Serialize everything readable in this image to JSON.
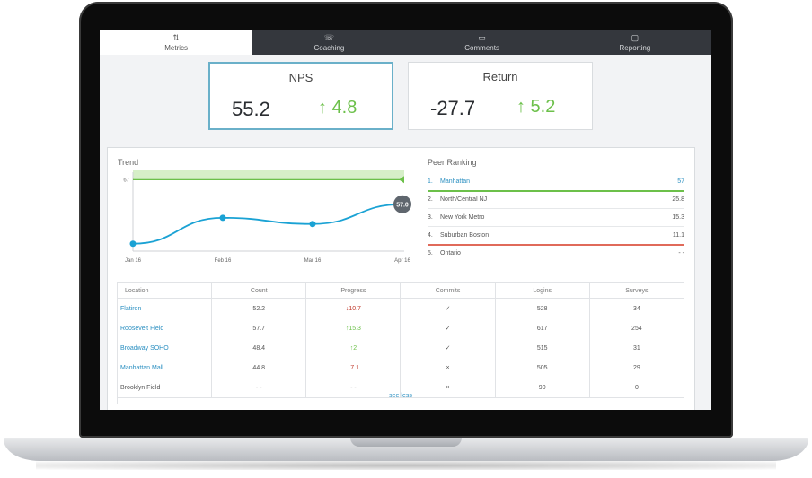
{
  "nav": {
    "tabs": [
      {
        "label": "Metrics",
        "icon": "⇅"
      },
      {
        "label": "Coaching",
        "icon": "☏"
      },
      {
        "label": "Comments",
        "icon": "▭"
      },
      {
        "label": "Reporting",
        "icon": "▢"
      }
    ]
  },
  "kpis": [
    {
      "title": "NPS",
      "value": "55.2",
      "delta": "↑ 4.8"
    },
    {
      "title": "Return",
      "value": "-27.7",
      "delta": "↑ 5.2"
    }
  ],
  "trend": {
    "title": "Trend",
    "target_label": "67",
    "current_label": "57.0"
  },
  "chart_data": {
    "type": "line",
    "x": [
      "Jan 16",
      "Feb 16",
      "Mar 16",
      "Apr 16"
    ],
    "series": [
      {
        "values": [
          41,
          51.5,
          49,
          57
        ]
      }
    ],
    "target": 67,
    "ylim": [
      38,
      70
    ]
  },
  "peer_ranking": {
    "title": "Peer Ranking",
    "items": [
      {
        "rank": "1.",
        "name": "Manhattan",
        "value": "57"
      },
      {
        "rank": "2.",
        "name": "North/Central NJ",
        "value": "25.8"
      },
      {
        "rank": "3.",
        "name": "New York Metro",
        "value": "15.3"
      },
      {
        "rank": "4.",
        "name": "Suburban Boston",
        "value": "11.1"
      },
      {
        "rank": "5.",
        "name": "Ontario",
        "value": "- -"
      }
    ]
  },
  "table": {
    "headers": [
      "Location",
      "Count",
      "Progress",
      "Commits",
      "Logins",
      "Surveys"
    ],
    "rows": [
      {
        "location": "Flatiron",
        "count": "52.2",
        "progress": "↓10.7",
        "commits": "✓",
        "logins": "528",
        "surveys": "34"
      },
      {
        "location": "Roosevelt Field",
        "count": "57.7",
        "progress": "↑15.3",
        "commits": "✓",
        "logins": "617",
        "surveys": "254"
      },
      {
        "location": "Broadway SOHO",
        "count": "48.4",
        "progress": "↑2",
        "commits": "✓",
        "logins": "515",
        "surveys": "31"
      },
      {
        "location": "Manhattan Mall",
        "count": "44.8",
        "progress": "↓7.1",
        "commits": "×",
        "logins": "505",
        "surveys": "29"
      },
      {
        "location": "Brooklyn Field",
        "count": "- -",
        "progress": "- -",
        "commits": "×",
        "logins": "90",
        "surveys": "0"
      }
    ],
    "see_less": "see less"
  },
  "colors": {
    "accent": "#1aa2d4",
    "positive": "#6cc04a",
    "negative": "#c0392b",
    "nav_bg": "#34373d"
  }
}
